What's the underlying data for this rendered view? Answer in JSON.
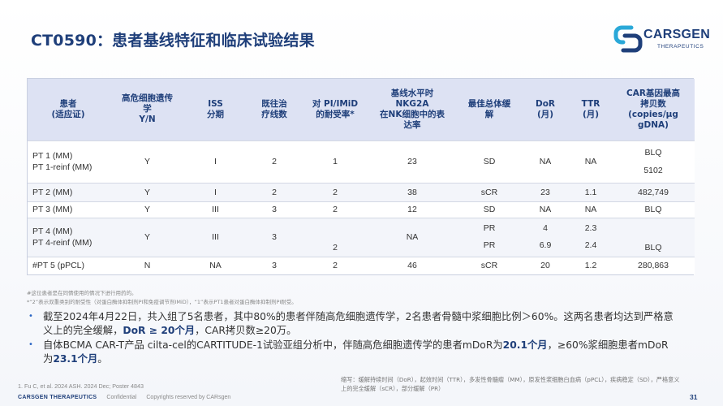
{
  "title": "CT0590：患者基线特征和临床试验结果",
  "logo": {
    "name": "CARSGEN",
    "sub": "THERAPEUTICS",
    "icon": "carsgen-logo-icon"
  },
  "colors": {
    "primary": "#1f3f7a",
    "accent": "#2b66c4",
    "header_bg": "#dde2f3"
  },
  "table": {
    "headers": [
      {
        "l1": "患者",
        "l2": "(适应证)"
      },
      {
        "l1": "高危细胞遗传",
        "l2": "学",
        "l3": "Y/N"
      },
      {
        "l1": "ISS",
        "l2": "分期"
      },
      {
        "l1": "既往治",
        "l2": "疗线数"
      },
      {
        "l1": "对 PI/IMiD",
        "l2": "的耐受率*"
      },
      {
        "l1": "基线水平时",
        "l2": "NKG2A",
        "l3": "在NK细胞中的表",
        "l4": "达率"
      },
      {
        "l1": "最佳总体缓",
        "l2": "解"
      },
      {
        "l1": "DoR",
        "l2": "(月)"
      },
      {
        "l1": "TTR",
        "l2": "(月)"
      },
      {
        "l1": "CAR基因最高",
        "l2": "拷贝数",
        "l3": "(copies/μg",
        "l4": "gDNA)"
      }
    ],
    "rows": [
      {
        "id1": "PT 1 (MM)",
        "id2": "PT 1-reinf (MM)",
        "risk": "Y",
        "iss": "I",
        "lines": "2",
        "pi": "1",
        "nkg2a": "23",
        "bor": "SD",
        "dor": "NA",
        "ttr": "NA",
        "car1": "BLQ",
        "car2": "5102"
      },
      {
        "id1": "PT 2 (MM)",
        "risk": "Y",
        "iss": "I",
        "lines": "2",
        "pi": "2",
        "nkg2a": "38",
        "bor": "sCR",
        "dor": "23",
        "ttr": "1.1",
        "car1": "482,749"
      },
      {
        "id1": "PT 3 (MM)",
        "risk": "Y",
        "iss": "III",
        "lines": "3",
        "pi": "2",
        "nkg2a": "12",
        "bor": "SD",
        "dor": "NA",
        "ttr": "NA",
        "car1": "BLQ"
      },
      {
        "id1": "PT 4 (MM)",
        "id2": "PT 4-reinf (MM)",
        "risk": "Y",
        "iss": "III",
        "lines": "3",
        "pi": "2",
        "nkg2a": "NA",
        "bor1": "PR",
        "bor2": "PR",
        "dor1": "4",
        "dor2": "6.9",
        "ttr1": "2.3",
        "ttr2": "2.4",
        "car1": "BLQ"
      },
      {
        "id1": "#PT 5 (pPCL)",
        "risk": "N",
        "iss": "NA",
        "lines": "3",
        "pi": "2",
        "nkg2a": "46",
        "bor": "sCR",
        "dor": "20",
        "ttr": "1.2",
        "car1": "280,863"
      }
    ]
  },
  "footnotes": [
    "#这位患者是在同情使用的情况下进行用药的。",
    "*“2”表示双重类别的耐受性（对蛋白酶体抑制剂PI和免疫调节剂IMiD），“1”表示PT1患者对蛋白酶体抑制剂PI耐受。"
  ],
  "bullets": {
    "b1_pre": "截至2024年4月22日，共入组了5名患者，其中80%的患者伴随高危细胞遗传学，2名患者骨髓中浆细胞比例＞60%。这两名患者均达到严格意义上的完全缓解，",
    "b1_bold": "DoR ≥ 20个月",
    "b1_post": "，CAR拷贝数≥20万。",
    "b2_pre": "自体BCMA CAR-T产品 cilta-cel的CARTITUDE-1试验亚组分析中，伴随高危细胞遗传学的患者mDoR为",
    "b2_bold1": "20.1个月",
    "b2_mid": "，≥60%浆细胞患者mDoR为",
    "b2_bold2": "23.1个月",
    "b2_post": "。"
  },
  "abbreviations": "缩写：缓解持续时间（DoR），起效时间（TTR），多发性骨髓瘤（MM），原发性浆细胞白血病（pPCL），疾病稳定（SD），严格意义上的完全缓解（sCR），部分缓解（PR）",
  "reference": "1. Fu C, et al. 2024 ASH. 2024 Dec; Poster 4843",
  "footer": {
    "brand": "CARSGEN THERAPEUTICS",
    "confidential": "Confidential",
    "copyright": "Copyrights reserved by CARsgen"
  },
  "page_number": "31"
}
